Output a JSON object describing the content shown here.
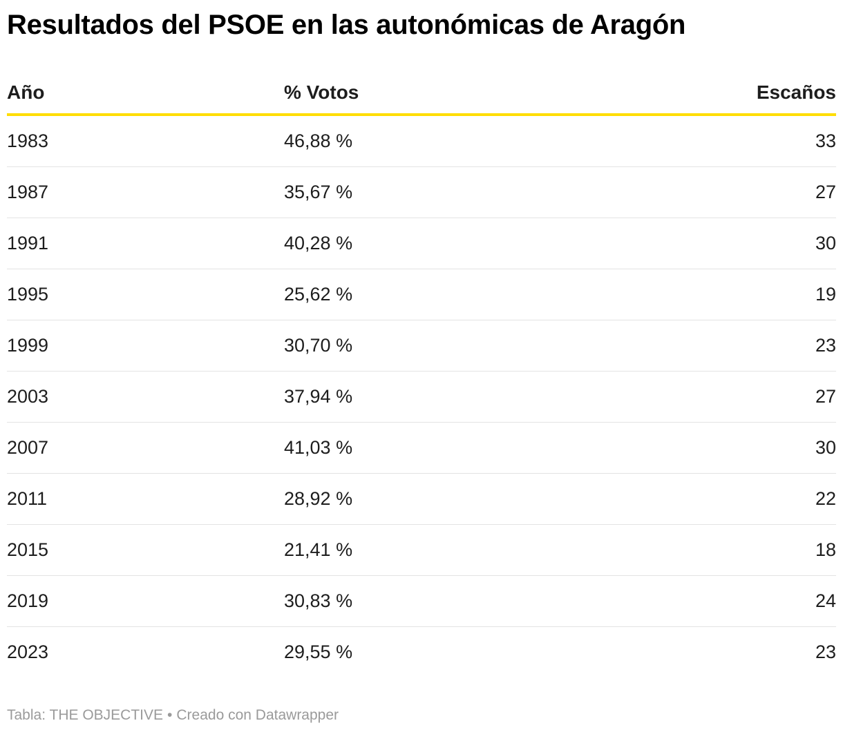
{
  "title": "Resultados del PSOE en las autonómicas de Aragón",
  "colors": {
    "header_rule": "#ffdd00",
    "row_divider": "#e3e3e3",
    "text": "#1d1d1d",
    "footer_text": "#9a9a9a"
  },
  "chart_data": {
    "type": "table",
    "columns": [
      "Año",
      "% Votos",
      "Escaños"
    ],
    "rows": [
      {
        "year": "1983",
        "votes": "46,88 %",
        "seats": "33"
      },
      {
        "year": "1987",
        "votes": "35,67 %",
        "seats": "27"
      },
      {
        "year": "1991",
        "votes": "40,28 %",
        "seats": "30"
      },
      {
        "year": "1995",
        "votes": "25,62 %",
        "seats": "19"
      },
      {
        "year": "1999",
        "votes": "30,70 %",
        "seats": "23"
      },
      {
        "year": "2003",
        "votes": "37,94 %",
        "seats": "27"
      },
      {
        "year": "2007",
        "votes": "41,03 %",
        "seats": "30"
      },
      {
        "year": "2011",
        "votes": "28,92 %",
        "seats": "22"
      },
      {
        "year": "2015",
        "votes": "21,41 %",
        "seats": "18"
      },
      {
        "year": "2019",
        "votes": "30,83 %",
        "seats": "24"
      },
      {
        "year": "2023",
        "votes": "29,55 %",
        "seats": "23"
      }
    ]
  },
  "footer": {
    "source": "Tabla: THE OBJECTIVE",
    "separator": "•",
    "credit": "Creado con Datawrapper"
  }
}
